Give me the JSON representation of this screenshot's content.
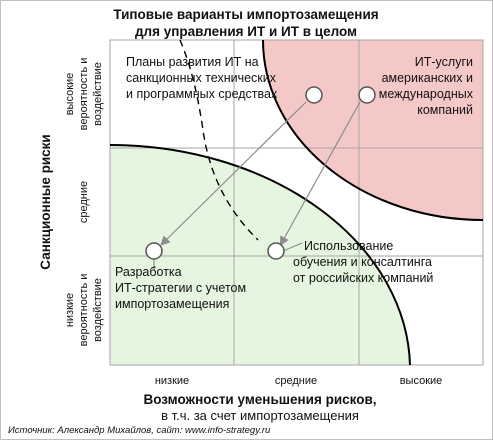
{
  "title": {
    "line1": "Типовые варианты импортозамещения",
    "line2": "для управления ИТ и ИТ в целом"
  },
  "y_axis": {
    "title": "Санкционные риски",
    "levels": [
      {
        "line1": "высокие",
        "line2": "вероятность и",
        "line3": "воздействие"
      },
      {
        "line1": "средние",
        "line2": "",
        "line3": ""
      },
      {
        "line1": "низкие",
        "line2": "вероятность и",
        "line3": "воздействие"
      }
    ]
  },
  "x_axis": {
    "title": "Возможности уменьшения рисков,",
    "subtitle": "в т.ч. за счет импортозамещения",
    "levels": [
      "низкие",
      "средние",
      "высокие"
    ]
  },
  "items": [
    {
      "lines": [
        "Планы развития ИТ на",
        "санкционных технических",
        "и программных средствах"
      ]
    },
    {
      "lines": [
        "ИТ-услуги",
        "американских и",
        "международных",
        "компаний"
      ]
    },
    {
      "lines": [
        "Использование",
        "обучения и консалтинга",
        "от российских компаний"
      ]
    },
    {
      "lines": [
        "Разработка",
        "ИТ-стратегии с учетом",
        "импортозамещения"
      ]
    }
  ],
  "colors": {
    "high_risk_zone": "#f5c8c8",
    "low_risk_zone": "#e6f5df",
    "grid": "#a6a6a6",
    "curve": "#000000",
    "marker_fill": "#ffffff",
    "leader": "#8c8c8c"
  },
  "source": "Источник: Александр Михайлов, сайт: www.info-strategy.ru"
}
